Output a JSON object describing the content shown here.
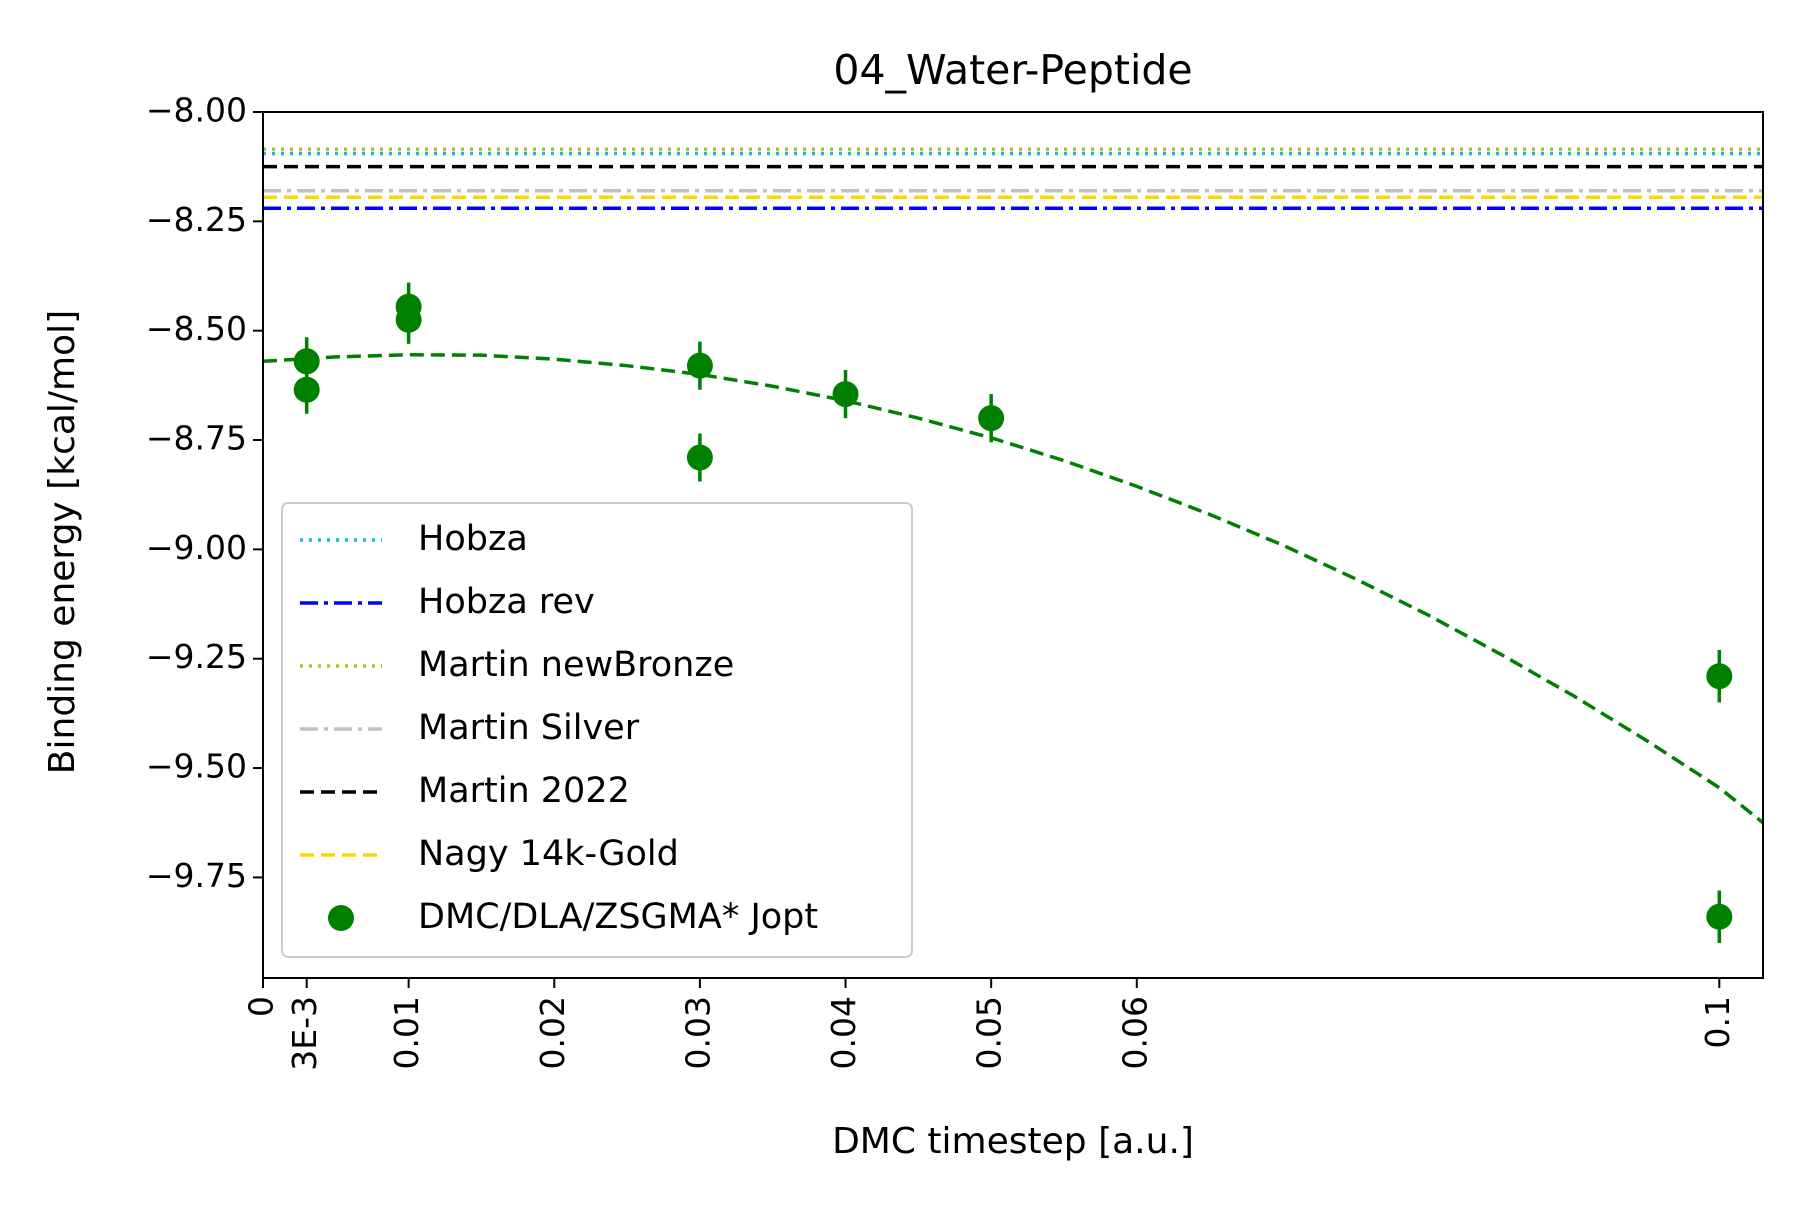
{
  "chart_data": {
    "type": "scatter",
    "title": "04_Water-Peptide",
    "xlabel": "DMC timestep [a.u.]",
    "ylabel": "Binding energy [kcal/mol]",
    "xlim": [
      0,
      0.103
    ],
    "ylim": [
      -9.98,
      -8.0
    ],
    "grid": false,
    "legend_position": "lower-left",
    "x_ticks": [
      {
        "value": 0,
        "label": "0"
      },
      {
        "value": 0.003,
        "label": "3E-3"
      },
      {
        "value": 0.01,
        "label": "0.01"
      },
      {
        "value": 0.02,
        "label": "0.02"
      },
      {
        "value": 0.03,
        "label": "0.03"
      },
      {
        "value": 0.04,
        "label": "0.04"
      },
      {
        "value": 0.05,
        "label": "0.05"
      },
      {
        "value": 0.06,
        "label": "0.06"
      },
      {
        "value": 0.1,
        "label": "0.1"
      }
    ],
    "y_ticks": [
      {
        "value": -8.0,
        "label": "−8.00"
      },
      {
        "value": -8.25,
        "label": "−8.25"
      },
      {
        "value": -8.5,
        "label": "−8.50"
      },
      {
        "value": -8.75,
        "label": "−8.75"
      },
      {
        "value": -9.0,
        "label": "−9.00"
      },
      {
        "value": -9.25,
        "label": "−9.25"
      },
      {
        "value": -9.5,
        "label": "−9.50"
      },
      {
        "value": -9.75,
        "label": "−9.75"
      }
    ],
    "reference_lines": [
      {
        "name": "Hobza",
        "value": -8.095,
        "color": "#17becf",
        "dash": "dotted"
      },
      {
        "name": "Hobza rev",
        "value": -8.22,
        "color": "#0000ff",
        "dash": "dashdot"
      },
      {
        "name": "Martin newBronze",
        "value": -8.085,
        "color": "#bcbd22",
        "dash": "dotted"
      },
      {
        "name": "Martin Silver",
        "value": -8.18,
        "color": "#c0c0c0",
        "dash": "dashdot"
      },
      {
        "name": "Martin 2022",
        "value": -8.125,
        "color": "#000000",
        "dash": "dashed"
      },
      {
        "name": "Nagy 14k-Gold",
        "value": -8.195,
        "color": "#ffd700",
        "dash": "dashed"
      }
    ],
    "series": [
      {
        "name": "DMC/DLA/ZSGMA* Jopt",
        "color": "#008000",
        "points": [
          {
            "x": 0.003,
            "y": -8.57,
            "err": 0.055
          },
          {
            "x": 0.003,
            "y": -8.635,
            "err": 0.055
          },
          {
            "x": 0.01,
            "y": -8.445,
            "err": 0.055
          },
          {
            "x": 0.01,
            "y": -8.475,
            "err": 0.055
          },
          {
            "x": 0.03,
            "y": -8.58,
            "err": 0.055
          },
          {
            "x": 0.03,
            "y": -8.79,
            "err": 0.055
          },
          {
            "x": 0.04,
            "y": -8.645,
            "err": 0.055
          },
          {
            "x": 0.05,
            "y": -8.7,
            "err": 0.055
          },
          {
            "x": 0.1,
            "y": -9.29,
            "err": 0.06
          },
          {
            "x": 0.1,
            "y": -9.84,
            "err": 0.06
          }
        ]
      }
    ],
    "fit": {
      "color": "#008000",
      "dash": "dashed",
      "points": [
        {
          "x": 0,
          "y": -8.57
        },
        {
          "x": 0.005,
          "y": -8.56
        },
        {
          "x": 0.01,
          "y": -8.555
        },
        {
          "x": 0.015,
          "y": -8.556
        },
        {
          "x": 0.02,
          "y": -8.565
        },
        {
          "x": 0.025,
          "y": -8.58
        },
        {
          "x": 0.03,
          "y": -8.6
        },
        {
          "x": 0.035,
          "y": -8.627
        },
        {
          "x": 0.04,
          "y": -8.66
        },
        {
          "x": 0.045,
          "y": -8.7
        },
        {
          "x": 0.05,
          "y": -8.745
        },
        {
          "x": 0.055,
          "y": -8.797
        },
        {
          "x": 0.06,
          "y": -8.856
        },
        {
          "x": 0.065,
          "y": -8.92
        },
        {
          "x": 0.07,
          "y": -8.99
        },
        {
          "x": 0.075,
          "y": -9.067
        },
        {
          "x": 0.08,
          "y": -9.15
        },
        {
          "x": 0.085,
          "y": -9.24
        },
        {
          "x": 0.09,
          "y": -9.335
        },
        {
          "x": 0.095,
          "y": -9.437
        },
        {
          "x": 0.1,
          "y": -9.545
        },
        {
          "x": 0.103,
          "y": -9.625
        }
      ]
    }
  }
}
